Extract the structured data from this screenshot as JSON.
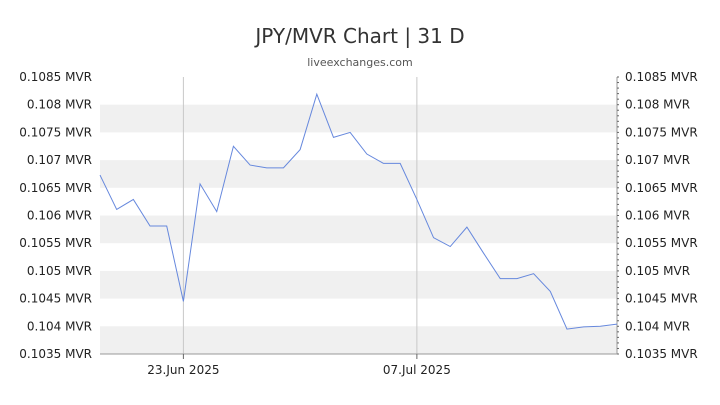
{
  "title": "JPY/MVR Chart | 31 D",
  "subtitle": "liveexchanges.com",
  "chart_data": {
    "type": "line",
    "title": "JPY/MVR Chart | 31 D",
    "subtitle": "liveexchanges.com",
    "unit": "MVR",
    "ylim": [
      0.1035,
      0.1085
    ],
    "y_ticks": [
      0.1085,
      0.108,
      0.1075,
      0.107,
      0.1065,
      0.106,
      0.1055,
      0.105,
      0.1045,
      0.104,
      0.1035
    ],
    "y_tick_labels": [
      "0.1085 MVR",
      "0.108 MVR",
      "0.1075 MVR",
      "0.107 MVR",
      "0.1065 MVR",
      "0.106 MVR",
      "0.1055 MVR",
      "0.105 MVR",
      "0.1045 MVR",
      "0.104 MVR",
      "0.1035 MVR"
    ],
    "x_range_days": [
      0,
      31
    ],
    "x_ticks": [
      5,
      19
    ],
    "x_tick_labels": [
      "23.Jun 2025",
      "07.Jul 2025"
    ],
    "grid": "alternating horizontal bands",
    "series_color": "#6688dd",
    "series": [
      {
        "values": [
          0.10673,
          0.10611,
          0.10629,
          0.10581,
          0.10581,
          0.10445,
          0.10657,
          0.10607,
          0.10725,
          0.10691,
          0.10686,
          0.10686,
          0.10719,
          0.10819,
          0.10741,
          0.1075,
          0.10711,
          0.10694,
          0.10694,
          0.10629,
          0.1056,
          0.10544,
          0.10579,
          0.10532,
          0.10486,
          0.10486,
          0.10495,
          0.10463,
          0.10395,
          0.10399,
          0.104,
          0.10404
        ]
      }
    ]
  }
}
